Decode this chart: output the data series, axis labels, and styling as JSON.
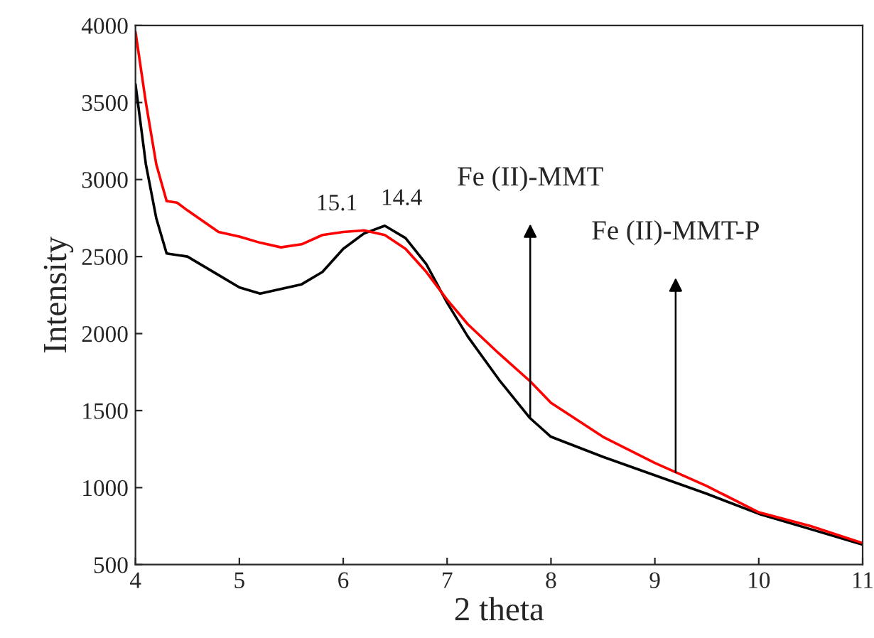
{
  "chart_data": {
    "type": "line",
    "xlabel": "2 theta",
    "ylabel": "Intensity",
    "xlim": [
      4,
      11
    ],
    "ylim": [
      500,
      4000
    ],
    "xticks": [
      4,
      5,
      6,
      7,
      8,
      9,
      10,
      11
    ],
    "yticks": [
      500,
      1000,
      1500,
      2000,
      2500,
      3000,
      3500,
      4000
    ],
    "grid": false,
    "legend": false,
    "marker": "none",
    "line_style": "solid",
    "series": [
      {
        "color": "#000000",
        "x": [
          4.0,
          4.1,
          4.2,
          4.3,
          4.5,
          4.8,
          5.0,
          5.2,
          5.4,
          5.6,
          5.8,
          6.0,
          6.2,
          6.4,
          6.6,
          6.8,
          7.0,
          7.2,
          7.5,
          7.8,
          8.0,
          8.5,
          9.0,
          9.5,
          10.0,
          10.5,
          11.0
        ],
        "values": [
          3620,
          3100,
          2750,
          2520,
          2500,
          2380,
          2300,
          2260,
          2290,
          2320,
          2400,
          2550,
          2650,
          2700,
          2620,
          2450,
          2200,
          1980,
          1700,
          1450,
          1330,
          1200,
          1080,
          960,
          830,
          730,
          630
        ]
      },
      {
        "color": "#ff0000",
        "x": [
          4.0,
          4.1,
          4.2,
          4.3,
          4.4,
          4.5,
          4.8,
          5.0,
          5.2,
          5.4,
          5.6,
          5.8,
          6.0,
          6.2,
          6.4,
          6.6,
          6.8,
          7.0,
          7.2,
          7.5,
          7.8,
          8.0,
          8.5,
          9.0,
          9.2,
          9.5,
          10.0,
          10.5,
          11.0
        ],
        "values": [
          3960,
          3500,
          3100,
          2860,
          2850,
          2800,
          2660,
          2630,
          2590,
          2560,
          2580,
          2640,
          2660,
          2670,
          2640,
          2550,
          2400,
          2220,
          2060,
          1870,
          1690,
          1550,
          1330,
          1160,
          1100,
          1010,
          840,
          750,
          640
        ]
      }
    ],
    "annotations": [
      {
        "text": "15.1",
        "x": 6.1,
        "y": 2665
      },
      {
        "text": "14.4",
        "x": 6.4,
        "y": 2700
      },
      {
        "text": "Fe (II)-MMT",
        "x": 7.8,
        "y": 1450
      },
      {
        "text": "Fe (II)-MMT-P",
        "x": 9.2,
        "y": 1100
      }
    ]
  }
}
